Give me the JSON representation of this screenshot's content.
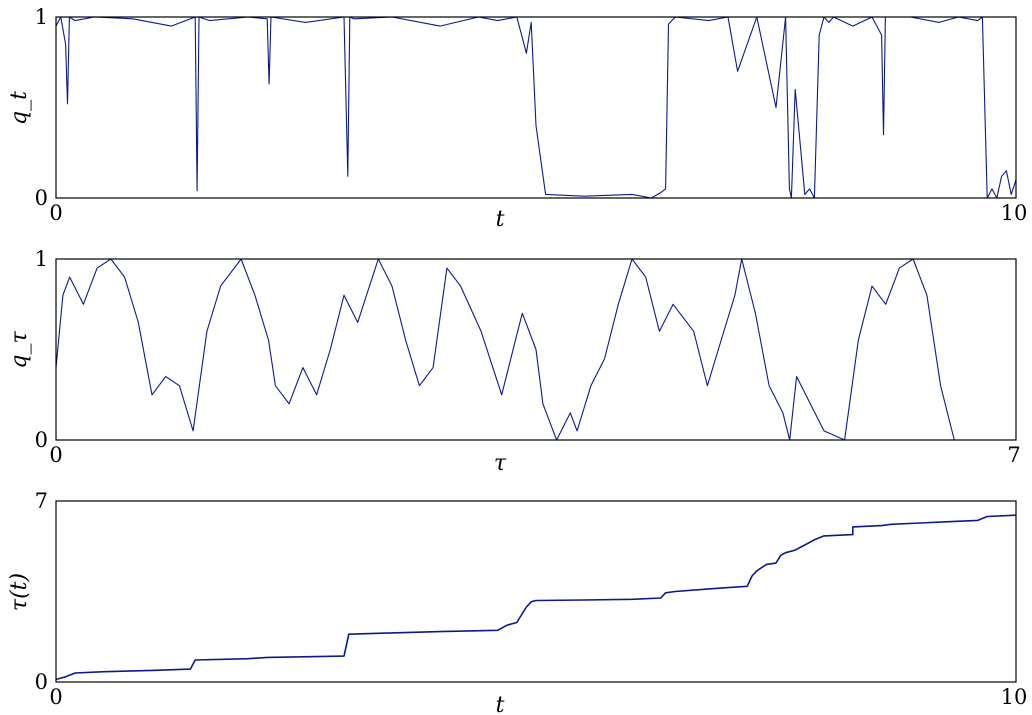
{
  "colors": {
    "series": "#0a1a8c",
    "axes": "#000000",
    "background": "#ffffff"
  },
  "chart_data": [
    {
      "type": "line",
      "xlabel": "t",
      "ylabel": "q_t",
      "xlim": [
        0,
        10
      ],
      "ylim": [
        0,
        1
      ],
      "xticks": [
        "0",
        "10"
      ],
      "yticks": [
        "0",
        "1"
      ],
      "grid": false,
      "series": [
        {
          "x": [
            0,
            0.05,
            0.1,
            0.12,
            0.14,
            0.2,
            0.4,
            0.8,
            1.2,
            1.45,
            1.47,
            1.49,
            1.6,
            2.0,
            2.2,
            2.22,
            2.24,
            2.6,
            3.0,
            3.04,
            3.06,
            3.1,
            3.5,
            4.0,
            4.4,
            4.6,
            4.8,
            4.9,
            4.95,
            5.0,
            5.1,
            5.5,
            6.0,
            6.2,
            6.3,
            6.35,
            6.38,
            6.45,
            6.8,
            7.0,
            7.1,
            7.3,
            7.5,
            7.6,
            7.64,
            7.66,
            7.7,
            7.8,
            7.85,
            7.9,
            7.95,
            8.0,
            8.05,
            8.1,
            8.3,
            8.5,
            8.6,
            8.62,
            8.64,
            8.9,
            9.2,
            9.4,
            9.6,
            9.65,
            9.7,
            9.75,
            9.8,
            9.85,
            9.9,
            9.95,
            10.0
          ],
          "y": [
            0.95,
            1.0,
            0.85,
            0.52,
            1.0,
            0.98,
            1.0,
            0.99,
            0.95,
            1.0,
            0.04,
            1.0,
            0.98,
            1.0,
            0.99,
            0.63,
            1.0,
            0.97,
            1.0,
            0.12,
            1.0,
            0.99,
            1.0,
            0.95,
            1.0,
            0.98,
            1.0,
            0.8,
            0.97,
            0.4,
            0.02,
            0.01,
            0.02,
            0.0,
            0.03,
            0.05,
            0.96,
            1.0,
            0.98,
            1.0,
            0.7,
            1.0,
            0.5,
            1.0,
            0.05,
            0.0,
            0.6,
            0.02,
            0.05,
            0.0,
            0.9,
            1.0,
            0.97,
            1.0,
            0.95,
            1.0,
            0.9,
            0.35,
            1.0,
            1.0,
            0.97,
            1.0,
            0.98,
            1.0,
            0.0,
            0.05,
            0.0,
            0.12,
            0.15,
            0.02,
            0.1
          ]
        }
      ]
    },
    {
      "type": "line",
      "xlabel": "τ",
      "ylabel": "q_τ",
      "xlim": [
        0,
        7
      ],
      "ylim": [
        0,
        1
      ],
      "xticks": [
        "0",
        "7"
      ],
      "yticks": [
        "0",
        "1"
      ],
      "grid": false,
      "series": [
        {
          "x": [
            0,
            0.05,
            0.1,
            0.2,
            0.3,
            0.4,
            0.5,
            0.6,
            0.7,
            0.8,
            0.9,
            1.0,
            1.1,
            1.2,
            1.35,
            1.45,
            1.55,
            1.6,
            1.7,
            1.8,
            1.9,
            2.0,
            2.1,
            2.2,
            2.35,
            2.45,
            2.55,
            2.65,
            2.75,
            2.85,
            2.95,
            3.1,
            3.25,
            3.35,
            3.4,
            3.5,
            3.55,
            3.65,
            3.75,
            3.8,
            3.9,
            4.0,
            4.1,
            4.2,
            4.3,
            4.4,
            4.5,
            4.6,
            4.65,
            4.75,
            4.85,
            4.95,
            5.0,
            5.1,
            5.2,
            5.3,
            5.35,
            5.4,
            5.5,
            5.6,
            5.75,
            5.85,
            5.95,
            6.05,
            6.15,
            6.25,
            6.35,
            6.45,
            6.55
          ],
          "y": [
            0.4,
            0.8,
            0.9,
            0.75,
            0.95,
            1.0,
            0.9,
            0.65,
            0.25,
            0.35,
            0.3,
            0.05,
            0.6,
            0.85,
            1.0,
            0.8,
            0.55,
            0.3,
            0.2,
            0.4,
            0.25,
            0.5,
            0.8,
            0.65,
            1.0,
            0.85,
            0.55,
            0.3,
            0.4,
            0.95,
            0.85,
            0.6,
            0.25,
            0.55,
            0.7,
            0.5,
            0.2,
            0.0,
            0.15,
            0.05,
            0.3,
            0.45,
            0.75,
            1.0,
            0.9,
            0.6,
            0.75,
            0.65,
            0.6,
            0.3,
            0.55,
            0.8,
            1.0,
            0.7,
            0.3,
            0.15,
            0.0,
            0.35,
            0.2,
            0.05,
            0.0,
            0.55,
            0.85,
            0.75,
            0.95,
            1.0,
            0.8,
            0.3,
            0.0
          ]
        }
      ]
    },
    {
      "type": "line",
      "xlabel": "t",
      "ylabel": "τ(t)",
      "xlim": [
        0,
        10
      ],
      "ylim": [
        0,
        7
      ],
      "xticks": [
        "0",
        "10"
      ],
      "yticks": [
        "0",
        "7"
      ],
      "grid": false,
      "series": [
        {
          "x": [
            0,
            0.1,
            0.2,
            0.5,
            1.0,
            1.4,
            1.45,
            2.0,
            2.2,
            2.5,
            3.0,
            3.05,
            3.5,
            4.0,
            4.6,
            4.7,
            4.8,
            4.9,
            4.95,
            5.0,
            5.5,
            6.0,
            6.3,
            6.35,
            6.45,
            6.8,
            7.0,
            7.2,
            7.25,
            7.3,
            7.4,
            7.5,
            7.55,
            7.6,
            7.7,
            7.8,
            7.9,
            8.0,
            8.3,
            8.3,
            8.6,
            8.7,
            9.0,
            9.3,
            9.6,
            9.7,
            10.0
          ],
          "y": [
            0.1,
            0.2,
            0.35,
            0.4,
            0.45,
            0.5,
            0.85,
            0.9,
            0.95,
            0.97,
            1.0,
            1.85,
            1.9,
            1.95,
            2.0,
            2.2,
            2.3,
            2.9,
            3.1,
            3.15,
            3.17,
            3.2,
            3.25,
            3.45,
            3.5,
            3.6,
            3.65,
            3.7,
            4.1,
            4.3,
            4.55,
            4.6,
            4.9,
            5.0,
            5.1,
            5.3,
            5.5,
            5.65,
            5.7,
            6.0,
            6.05,
            6.1,
            6.15,
            6.2,
            6.25,
            6.4,
            6.45
          ]
        }
      ]
    }
  ]
}
